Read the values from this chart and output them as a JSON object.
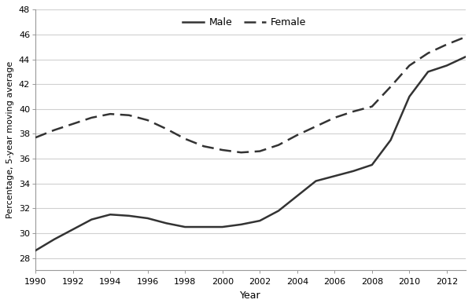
{
  "xlabel": "Year",
  "ylabel": "Percentage, 5-year moving average",
  "xlim": [
    1990,
    2013
  ],
  "ylim": [
    27,
    48
  ],
  "yticks": [
    28,
    30,
    32,
    34,
    36,
    38,
    40,
    42,
    44,
    46,
    48
  ],
  "xticks": [
    1990,
    1992,
    1994,
    1996,
    1998,
    2000,
    2002,
    2004,
    2006,
    2008,
    2010,
    2012
  ],
  "male_x": [
    1990,
    1991,
    1992,
    1993,
    1994,
    1995,
    1996,
    1997,
    1998,
    1999,
    2000,
    2001,
    2002,
    2003,
    2004,
    2005,
    2006,
    2007,
    2008,
    2009,
    2010,
    2011,
    2012,
    2013
  ],
  "male_y": [
    28.6,
    29.5,
    30.3,
    31.1,
    31.5,
    31.4,
    31.2,
    30.8,
    30.5,
    30.5,
    30.5,
    30.7,
    31.0,
    31.8,
    33.0,
    34.2,
    34.6,
    35.0,
    35.5,
    37.5,
    41.0,
    43.0,
    43.5,
    44.2
  ],
  "female_x": [
    1990,
    1991,
    1992,
    1993,
    1994,
    1995,
    1996,
    1997,
    1998,
    1999,
    2000,
    2001,
    2002,
    2003,
    2004,
    2005,
    2006,
    2007,
    2008,
    2009,
    2010,
    2011,
    2012,
    2013
  ],
  "female_y": [
    37.7,
    38.3,
    38.8,
    39.3,
    39.6,
    39.5,
    39.1,
    38.4,
    37.6,
    37.0,
    36.7,
    36.5,
    36.6,
    37.1,
    37.9,
    38.6,
    39.3,
    39.8,
    40.2,
    41.8,
    43.5,
    44.5,
    45.2,
    45.8
  ],
  "line_color": "#333333",
  "background_color": "#ffffff",
  "grid_color": "#d0d0d0",
  "legend_labels": [
    "Male",
    "Female"
  ]
}
